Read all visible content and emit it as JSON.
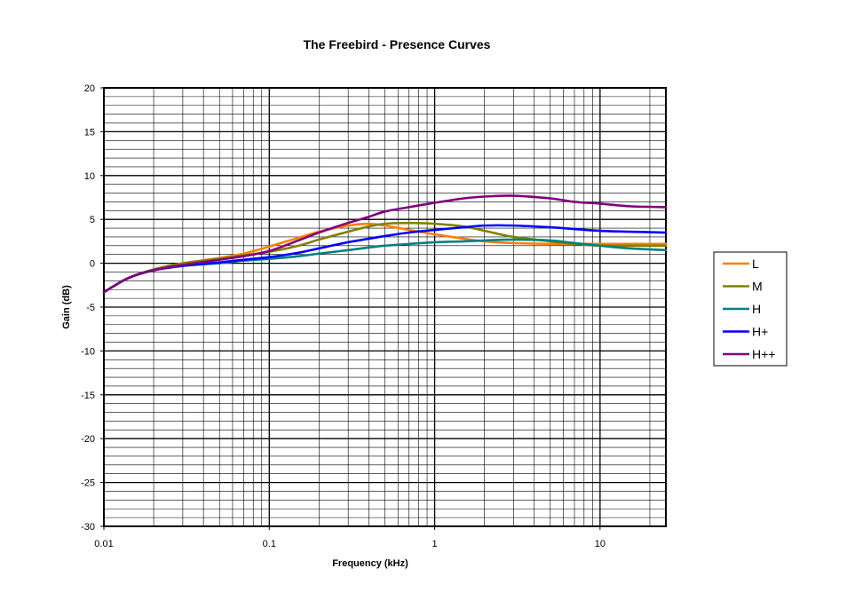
{
  "chart_data": {
    "type": "line",
    "title": "The Freebird - Presence Curves",
    "xlabel": "Frequency (kHz)",
    "ylabel": "Gain (dB)",
    "x_scale": "log",
    "xlim": [
      0.01,
      25
    ],
    "ylim": [
      -30,
      20
    ],
    "x_ticks": [
      {
        "value": 0.01,
        "label": "0.01"
      },
      {
        "value": 0.1,
        "label": "0.1"
      },
      {
        "value": 1,
        "label": "1"
      },
      {
        "value": 10,
        "label": "10"
      }
    ],
    "y_ticks": [
      {
        "value": 20,
        "label": "20"
      },
      {
        "value": 15,
        "label": "15"
      },
      {
        "value": 10,
        "label": "10"
      },
      {
        "value": 5,
        "label": "5"
      },
      {
        "value": 0,
        "label": "0"
      },
      {
        "value": -5,
        "label": "-5"
      },
      {
        "value": -10,
        "label": "-10"
      },
      {
        "value": -15,
        "label": "-15"
      },
      {
        "value": -20,
        "label": "-20"
      },
      {
        "value": -25,
        "label": "-25"
      },
      {
        "value": -30,
        "label": "-30"
      }
    ],
    "grid": true,
    "legend_position": "right",
    "series": [
      {
        "name": "L",
        "color": "#ff7f00",
        "x": [
          0.01,
          0.014,
          0.02,
          0.03,
          0.05,
          0.07,
          0.1,
          0.15,
          0.2,
          0.3,
          0.4,
          0.5,
          0.7,
          1,
          1.5,
          2,
          3,
          5,
          7,
          10,
          15,
          25
        ],
        "y": [
          -3.3,
          -1.7,
          -0.7,
          0,
          0.6,
          1.1,
          1.9,
          2.9,
          3.6,
          4.3,
          4.5,
          4.3,
          3.8,
          3.3,
          2.8,
          2.5,
          2.3,
          2.2,
          2.2,
          2.2,
          2.2,
          2.2
        ]
      },
      {
        "name": "M",
        "color": "#808000",
        "x": [
          0.01,
          0.014,
          0.02,
          0.03,
          0.05,
          0.07,
          0.1,
          0.15,
          0.2,
          0.3,
          0.4,
          0.5,
          0.7,
          1,
          1.5,
          2,
          3,
          5,
          7,
          10,
          15,
          25
        ],
        "y": [
          -3.3,
          -1.7,
          -0.7,
          0,
          0.5,
          0.9,
          1.3,
          2.0,
          2.7,
          3.6,
          4.2,
          4.5,
          4.6,
          4.5,
          4.2,
          3.7,
          3.0,
          2.5,
          2.2,
          2.0,
          2.0,
          2.0
        ]
      },
      {
        "name": "H",
        "color": "#008080",
        "x": [
          0.01,
          0.014,
          0.02,
          0.03,
          0.05,
          0.07,
          0.1,
          0.15,
          0.2,
          0.3,
          0.4,
          0.5,
          0.7,
          1,
          1.5,
          2,
          3,
          5,
          7,
          10,
          15,
          25
        ],
        "y": [
          -3.3,
          -1.7,
          -0.8,
          -0.3,
          0,
          0.3,
          0.5,
          0.8,
          1.1,
          1.5,
          1.8,
          2.0,
          2.2,
          2.4,
          2.5,
          2.6,
          2.7,
          2.6,
          2.3,
          2.0,
          1.7,
          1.5
        ]
      },
      {
        "name": "H+",
        "color": "#0000ff",
        "x": [
          0.01,
          0.014,
          0.02,
          0.03,
          0.05,
          0.07,
          0.1,
          0.15,
          0.2,
          0.3,
          0.4,
          0.5,
          0.7,
          1,
          1.5,
          2,
          3,
          5,
          7,
          10,
          15,
          25
        ],
        "y": [
          -3.3,
          -1.7,
          -0.8,
          -0.3,
          0.1,
          0.4,
          0.7,
          1.2,
          1.7,
          2.4,
          2.8,
          3.1,
          3.5,
          3.8,
          4.1,
          4.3,
          4.3,
          4.1,
          3.9,
          3.7,
          3.6,
          3.5
        ]
      },
      {
        "name": "H++",
        "color": "#800080",
        "x": [
          0.01,
          0.014,
          0.02,
          0.03,
          0.05,
          0.07,
          0.1,
          0.15,
          0.2,
          0.3,
          0.4,
          0.5,
          0.7,
          1,
          1.5,
          2,
          3,
          5,
          7,
          10,
          15,
          25
        ],
        "y": [
          -3.3,
          -1.7,
          -0.8,
          -0.2,
          0.4,
          0.8,
          1.4,
          2.6,
          3.5,
          4.6,
          5.3,
          5.9,
          6.4,
          6.9,
          7.4,
          7.6,
          7.7,
          7.4,
          7.0,
          6.8,
          6.5,
          6.4
        ]
      }
    ]
  }
}
